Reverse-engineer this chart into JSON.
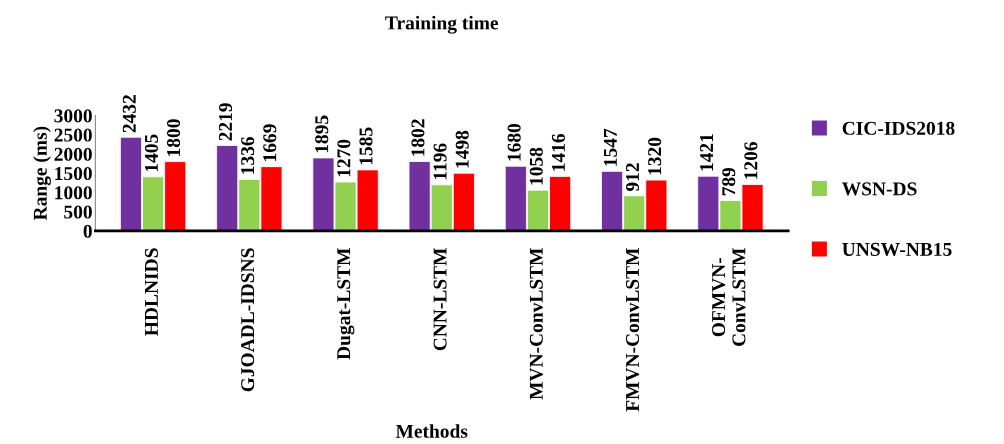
{
  "chart_data": {
    "type": "bar",
    "title": "Training time",
    "xlabel": "Methods",
    "ylabel": "Range (ms)",
    "categories": [
      "HDLNIDS",
      "GJOADL-IDSNS",
      "Dugat-LSTM",
      "CNN-LSTM",
      "MVN-ConvLSTM",
      "FMVN-ConvLSTM",
      "OFMVN-\nConvLSTM"
    ],
    "series": [
      {
        "name": "CIC-IDS2018",
        "color": "#7030a0",
        "values": [
          2432,
          2219,
          1895,
          1802,
          1680,
          1547,
          1421
        ]
      },
      {
        "name": "WSN-DS",
        "color": "#92d050",
        "values": [
          1405,
          1336,
          1270,
          1196,
          1058,
          912,
          789
        ]
      },
      {
        "name": "UNSW-NB15",
        "color": "#ff0000",
        "values": [
          1800,
          1669,
          1585,
          1498,
          1416,
          1320,
          1206
        ]
      }
    ],
    "ylim": [
      0,
      3000
    ],
    "yticks": [
      0,
      500,
      1000,
      1500,
      2000,
      2500,
      3000
    ],
    "data_labels": true,
    "grid": false,
    "legend": "right"
  }
}
